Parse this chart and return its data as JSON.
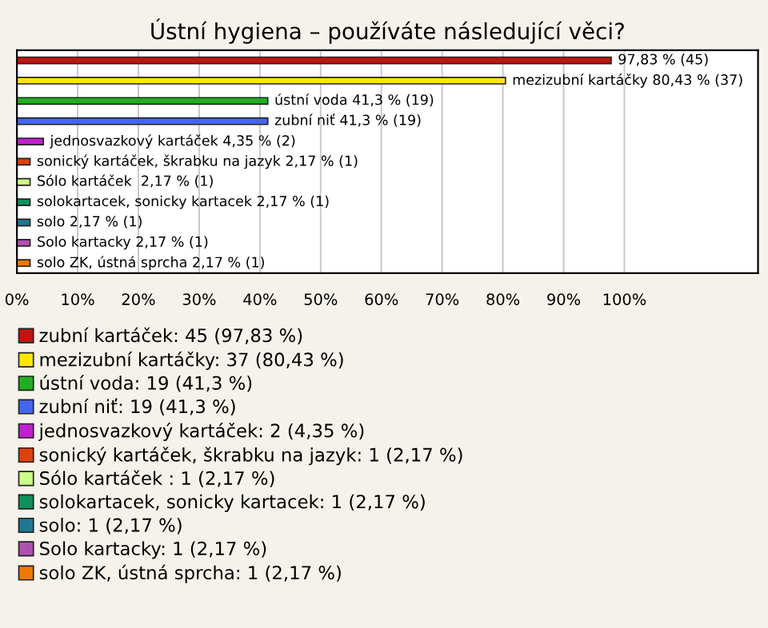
{
  "chart_data": {
    "type": "bar",
    "orientation": "horizontal",
    "title": "Ústní hygiena – používáte následující věci?",
    "categories": [
      null,
      null,
      null,
      null,
      null,
      null,
      null,
      null,
      null,
      null,
      null
    ],
    "series": [
      {
        "name": "zubní kartáček: 45 (97,83 %)",
        "color": "#c0150c",
        "values": [
          97.83,
          null,
          null,
          null,
          null,
          null,
          null,
          null,
          null,
          null,
          null
        ],
        "value_labels": [
          "97,83 % (45)",
          null,
          null,
          null,
          null,
          null,
          null,
          null,
          null,
          null,
          null
        ]
      },
      {
        "name": "mezizubní kartáčky: 37 (80,43 %)",
        "color": "#ffe800",
        "values": [
          null,
          80.43,
          null,
          null,
          null,
          null,
          null,
          null,
          null,
          null,
          null
        ],
        "value_labels": [
          null,
          "mezizubní kartáčky 80,43 % (37)",
          null,
          null,
          null,
          null,
          null,
          null,
          null,
          null,
          null
        ]
      },
      {
        "name": "ústní voda: 19 (41,3 %)",
        "color": "#1fb01f",
        "values": [
          null,
          null,
          41.3,
          null,
          null,
          null,
          null,
          null,
          null,
          null,
          null
        ],
        "value_labels": [
          null,
          null,
          "ústní voda 41,3 % (19)",
          null,
          null,
          null,
          null,
          null,
          null,
          null,
          null
        ]
      },
      {
        "name": "zubní niť: 19 (41,3 %)",
        "color": "#4466ee",
        "values": [
          null,
          null,
          null,
          41.3,
          null,
          null,
          null,
          null,
          null,
          null,
          null
        ],
        "value_labels": [
          null,
          null,
          null,
          "zubní niť 41,3 % (19)",
          null,
          null,
          null,
          null,
          null,
          null,
          null
        ]
      },
      {
        "name": "jednosvazkový kartáček: 2 (4,35 %)",
        "color": "#c01ed0",
        "values": [
          null,
          null,
          null,
          null,
          4.35,
          null,
          null,
          null,
          null,
          null,
          null
        ],
        "value_labels": [
          null,
          null,
          null,
          null,
          "jednosvazkový kartáček 4,35 % (2)",
          null,
          null,
          null,
          null,
          null,
          null
        ]
      },
      {
        "name": "sonický kartáček, škrabku na jazyk: 1 (2,17 %)",
        "color": "#e0400c",
        "values": [
          null,
          null,
          null,
          null,
          null,
          2.17,
          null,
          null,
          null,
          null,
          null
        ],
        "value_labels": [
          null,
          null,
          null,
          null,
          null,
          "sonický kartáček, škrabku na jazyk 2,17 % (1)",
          null,
          null,
          null,
          null,
          null
        ]
      },
      {
        "name": "Sólo kartáček : 1 (2,17 %)",
        "color": "#ccff88",
        "values": [
          null,
          null,
          null,
          null,
          null,
          null,
          2.17,
          null,
          null,
          null,
          null
        ],
        "value_labels": [
          null,
          null,
          null,
          null,
          null,
          null,
          "Sólo kartáček  2,17 % (1)",
          null,
          null,
          null,
          null
        ]
      },
      {
        "name": "solokartacek, sonicky kartacek: 1 (2,17 %)",
        "color": "#10905a",
        "values": [
          null,
          null,
          null,
          null,
          null,
          null,
          null,
          2.17,
          null,
          null,
          null
        ],
        "value_labels": [
          null,
          null,
          null,
          null,
          null,
          null,
          null,
          "solokartacek, sonicky kartacek 2,17 % (1)",
          null,
          null,
          null
        ]
      },
      {
        "name": "solo: 1 (2,17 %)",
        "color": "#207890",
        "values": [
          null,
          null,
          null,
          null,
          null,
          null,
          null,
          null,
          2.17,
          null,
          null
        ],
        "value_labels": [
          null,
          null,
          null,
          null,
          null,
          null,
          null,
          null,
          "solo 2,17 % (1)",
          null,
          null
        ]
      },
      {
        "name": "Solo kartacky: 1 (2,17 %)",
        "color": "#b050b0",
        "values": [
          null,
          null,
          null,
          null,
          null,
          null,
          null,
          null,
          null,
          2.17,
          null
        ],
        "value_labels": [
          null,
          null,
          null,
          null,
          null,
          null,
          null,
          null,
          null,
          "Solo kartacky 2,17 % (1)",
          null
        ]
      },
      {
        "name": "solo ZK, ústná sprcha: 1 (2,17 %)",
        "color": "#f07800",
        "values": [
          null,
          null,
          null,
          null,
          null,
          null,
          null,
          null,
          null,
          null,
          2.17
        ],
        "value_labels": [
          null,
          null,
          null,
          null,
          null,
          null,
          null,
          null,
          null,
          null,
          "solo ZK, ústná sprcha 2,17 % (1)"
        ]
      }
    ],
    "xlim": [
      0,
      122
    ],
    "xticks": [
      {
        "value": 0,
        "label": "0%"
      },
      {
        "value": 10,
        "label": "10%"
      },
      {
        "value": 20,
        "label": "20%"
      },
      {
        "value": 30,
        "label": "30%"
      },
      {
        "value": 40,
        "label": "40%"
      },
      {
        "value": 50,
        "label": "50%"
      },
      {
        "value": 60,
        "label": "60%"
      },
      {
        "value": 70,
        "label": "70%"
      },
      {
        "value": 80,
        "label": "80%"
      },
      {
        "value": 90,
        "label": "90%"
      },
      {
        "value": 100,
        "label": "100%"
      }
    ],
    "grid": "x",
    "legend": "bottom",
    "tick_labels": "x"
  }
}
